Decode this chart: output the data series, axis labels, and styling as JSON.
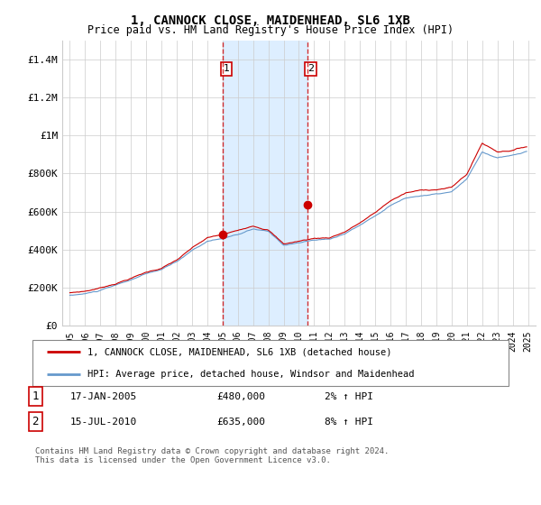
{
  "title": "1, CANNOCK CLOSE, MAIDENHEAD, SL6 1XB",
  "subtitle": "Price paid vs. HM Land Registry's House Price Index (HPI)",
  "legend_line1": "1, CANNOCK CLOSE, MAIDENHEAD, SL6 1XB (detached house)",
  "legend_line2": "HPI: Average price, detached house, Windsor and Maidenhead",
  "transaction1_date": "17-JAN-2005",
  "transaction1_price": "£480,000",
  "transaction1_hpi": "2% ↑ HPI",
  "transaction1_year": 2005.04,
  "transaction1_value": 480000,
  "transaction2_date": "15-JUL-2010",
  "transaction2_price": "£635,000",
  "transaction2_hpi": "8% ↑ HPI",
  "transaction2_year": 2010.54,
  "transaction2_value": 635000,
  "footer": "Contains HM Land Registry data © Crown copyright and database right 2024.\nThis data is licensed under the Open Government Licence v3.0.",
  "price_line_color": "#cc0000",
  "hpi_line_color": "#6699cc",
  "vline_color": "#cc0000",
  "span_color": "#ddeeff",
  "background_color": "#ffffff",
  "grid_color": "#cccccc",
  "ylim": [
    0,
    1500000
  ],
  "xlim_start": 1994.5,
  "xlim_end": 2025.5,
  "yticks": [
    0,
    200000,
    400000,
    600000,
    800000,
    1000000,
    1200000,
    1400000
  ],
  "ytick_labels": [
    "£0",
    "£200K",
    "£400K",
    "£600K",
    "£800K",
    "£1M",
    "£1.2M",
    "£1.4M"
  ],
  "xticks": [
    1995,
    1996,
    1997,
    1998,
    1999,
    2000,
    2001,
    2002,
    2003,
    2004,
    2005,
    2006,
    2007,
    2008,
    2009,
    2010,
    2011,
    2012,
    2013,
    2014,
    2015,
    2016,
    2017,
    2018,
    2019,
    2020,
    2021,
    2022,
    2023,
    2024,
    2025
  ]
}
